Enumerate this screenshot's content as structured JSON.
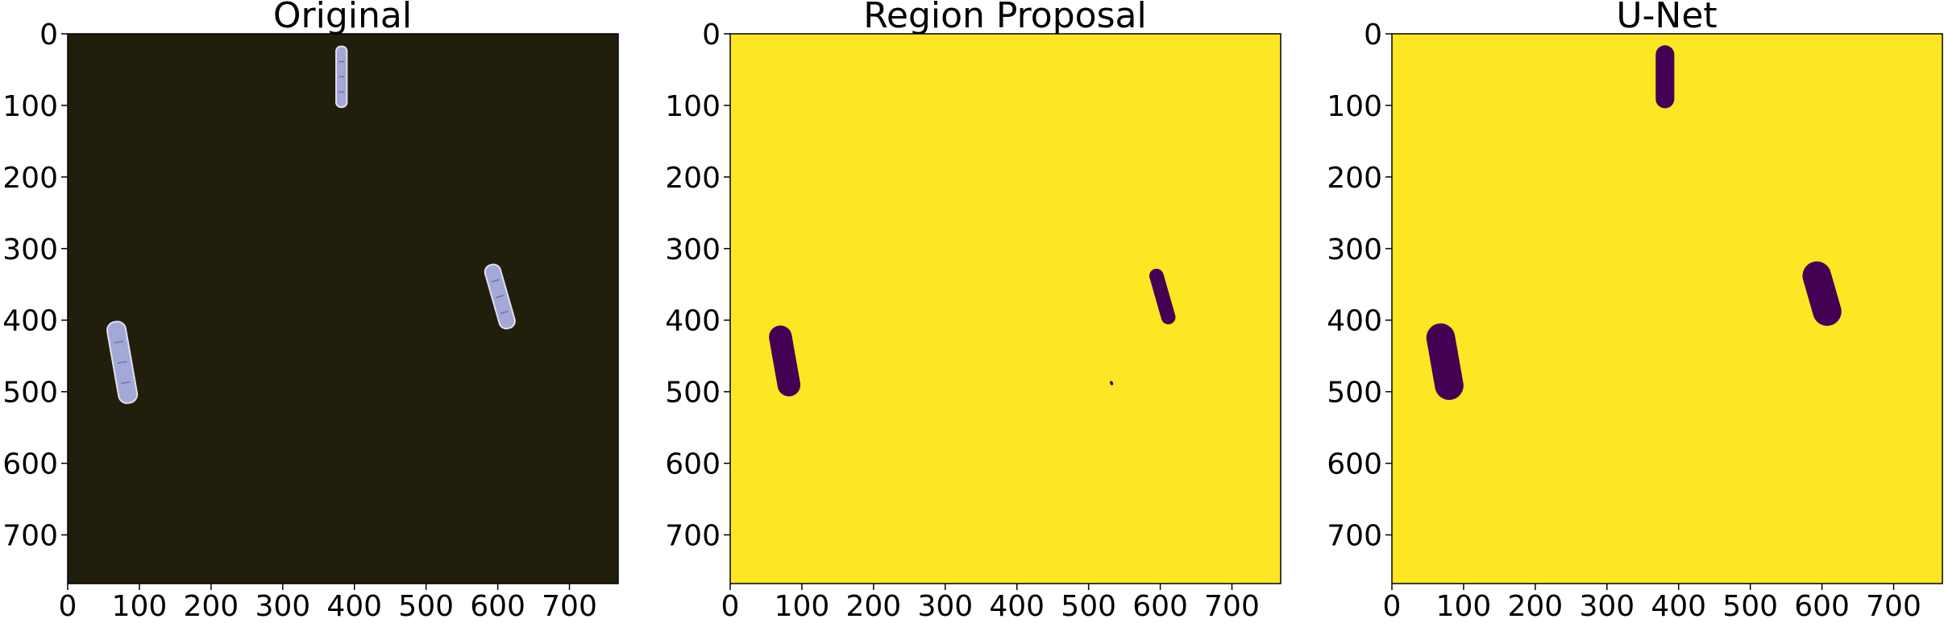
{
  "figure": {
    "axis_range": [
      0,
      768
    ],
    "ticks": [
      0,
      100,
      200,
      300,
      400,
      500,
      600,
      700
    ],
    "tick_labels": [
      "0",
      "100",
      "200",
      "300",
      "400",
      "500",
      "600",
      "700"
    ],
    "colors": {
      "sea": "#211f0b",
      "ship_hull": "#a4a8d6",
      "ship_edge": "#dfe0ee",
      "mask_background": "#fde725",
      "mask_ship": "#440154",
      "axis": "#000000"
    }
  },
  "panels": [
    {
      "id": "original",
      "title": "Original",
      "kind": "photo",
      "ships": [
        {
          "x": 382,
          "y": 60,
          "length": 85,
          "width": 15,
          "angle": 0
        },
        {
          "x": 603,
          "y": 367,
          "length": 92,
          "width": 22,
          "angle": -16
        },
        {
          "x": 76,
          "y": 459,
          "length": 115,
          "width": 26,
          "angle": -10
        }
      ]
    },
    {
      "id": "region-proposal",
      "title": "Region Proposal",
      "kind": "mask",
      "ships": [
        {
          "x": 603,
          "y": 367,
          "length": 80,
          "width": 20,
          "angle": -16
        },
        {
          "x": 76,
          "y": 457,
          "length": 100,
          "width": 32,
          "angle": -10
        },
        {
          "x": 532,
          "y": 488,
          "length": 6,
          "width": 4,
          "angle": -20
        }
      ]
    },
    {
      "id": "u-net",
      "title": "U-Net",
      "kind": "mask",
      "ships": [
        {
          "x": 381,
          "y": 60,
          "length": 88,
          "width": 26,
          "angle": 0
        },
        {
          "x": 600,
          "y": 363,
          "length": 92,
          "width": 40,
          "angle": -16
        },
        {
          "x": 74,
          "y": 458,
          "length": 108,
          "width": 40,
          "angle": -10
        }
      ]
    }
  ]
}
